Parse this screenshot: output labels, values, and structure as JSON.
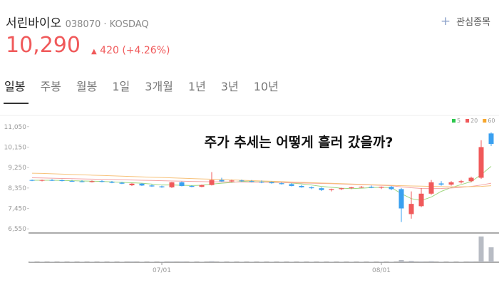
{
  "header": {
    "name": "서린바이오",
    "code": "038070",
    "market": "KOSDAQ",
    "watch": "관심종목",
    "price": "10,290",
    "change": "420",
    "change_pct": "(+4.26%)"
  },
  "tabs": [
    "일봉",
    "주봉",
    "월봉",
    "1일",
    "3개월",
    "1년",
    "3년",
    "10년"
  ],
  "chart_data": {
    "type": "candlestick",
    "annotation": "주가 추세는 어떻게 흘러 갔을까?",
    "categories": [
      null,
      null,
      null,
      null,
      null,
      null,
      null,
      null,
      null,
      null,
      null,
      null,
      null,
      "07/01",
      null,
      null,
      null,
      null,
      null,
      null,
      null,
      null,
      null,
      null,
      null,
      null,
      null,
      null,
      null,
      null,
      null,
      null,
      null,
      null,
      null,
      "08/01",
      null,
      null,
      null,
      null,
      null,
      null,
      null,
      null,
      null,
      null,
      null
    ],
    "open": [
      8700,
      8680,
      8700,
      8690,
      8660,
      8640,
      8610,
      8650,
      8620,
      8580,
      8470,
      8540,
      8460,
      8420,
      8380,
      8600,
      8440,
      8400,
      8480,
      8700,
      8640,
      8680,
      8650,
      8620,
      8600,
      8560,
      8520,
      8440,
      8380,
      8340,
      8260,
      8300,
      8340,
      8380,
      8400,
      8360,
      8400,
      8300,
      7200,
      7550,
      8100,
      8550,
      8500,
      8600,
      8650,
      8800,
      10750
    ],
    "high": [
      8720,
      8720,
      8740,
      8720,
      8700,
      8690,
      8680,
      8690,
      8660,
      8620,
      8560,
      8560,
      8500,
      8450,
      8620,
      8640,
      8470,
      8500,
      9050,
      8800,
      8720,
      8720,
      8700,
      8680,
      8640,
      8600,
      8560,
      8480,
      8420,
      8380,
      8320,
      8360,
      8400,
      8440,
      8460,
      8420,
      8440,
      8350,
      8200,
      8350,
      8700,
      8650,
      8650,
      8700,
      8850,
      10450,
      10800
    ],
    "low": [
      8650,
      8640,
      8660,
      8640,
      8620,
      8600,
      8590,
      8600,
      8560,
      8520,
      8440,
      8440,
      8400,
      8360,
      8350,
      8420,
      8380,
      8380,
      8460,
      8620,
      8600,
      8620,
      8600,
      8560,
      8540,
      8500,
      8420,
      8360,
      8300,
      8220,
      8200,
      8260,
      8300,
      8340,
      8340,
      8300,
      8250,
      6850,
      7000,
      7500,
      8050,
      8450,
      8450,
      8550,
      8600,
      8750,
      10200
    ],
    "close": [
      8680,
      8700,
      8690,
      8660,
      8640,
      8610,
      8650,
      8620,
      8580,
      8540,
      8540,
      8460,
      8420,
      8380,
      8600,
      8440,
      8400,
      8480,
      8700,
      8640,
      8680,
      8650,
      8620,
      8600,
      8560,
      8520,
      8440,
      8380,
      8340,
      8260,
      8300,
      8340,
      8380,
      8400,
      8360,
      8400,
      8300,
      7450,
      7650,
      8100,
      8600,
      8500,
      8600,
      8650,
      8800,
      10150,
      10290
    ],
    "up_color": "#f0595a",
    "down_color": "#3aa0f0",
    "series": [
      {
        "name": "5",
        "color": "#9fd67e",
        "values": [
          8690,
          8690,
          8690,
          8680,
          8670,
          8660,
          8650,
          8640,
          8620,
          8600,
          8580,
          8560,
          8520,
          8480,
          8480,
          8470,
          8460,
          8470,
          8520,
          8560,
          8590,
          8640,
          8660,
          8650,
          8630,
          8600,
          8570,
          8530,
          8480,
          8420,
          8380,
          8340,
          8320,
          8340,
          8370,
          8380,
          8370,
          8100,
          7880,
          7800,
          7950,
          8200,
          8370,
          8500,
          8630,
          8940,
          9300
        ]
      },
      {
        "name": "20",
        "color": "#f4a3a3",
        "values": [
          8800,
          8790,
          8780,
          8770,
          8760,
          8750,
          8740,
          8730,
          8720,
          8710,
          8700,
          8690,
          8680,
          8670,
          8660,
          8650,
          8640,
          8630,
          8625,
          8620,
          8615,
          8610,
          8605,
          8600,
          8595,
          8590,
          8580,
          8570,
          8560,
          8550,
          8540,
          8525,
          8510,
          8495,
          8480,
          8465,
          8450,
          8400,
          8360,
          8330,
          8320,
          8330,
          8350,
          8380,
          8420,
          8480,
          8560
        ]
      },
      {
        "name": "60",
        "color": "#f7c27a",
        "values": [
          9000,
          8990,
          8975,
          8960,
          8945,
          8930,
          8915,
          8900,
          8885,
          8870,
          8855,
          8840,
          8825,
          8810,
          8795,
          8780,
          8765,
          8750,
          8735,
          8720,
          8705,
          8690,
          8675,
          8660,
          8645,
          8630,
          8615,
          8600,
          8585,
          8570,
          8555,
          8540,
          8525,
          8510,
          8495,
          8480,
          8465,
          8450,
          8440,
          8430,
          8420,
          8410,
          8405,
          8405,
          8410,
          8420,
          8450
        ]
      }
    ],
    "legend_colors": [
      "#2cc74d",
      "#f0595a",
      "#f7a62b"
    ],
    "volume": [
      2,
      2,
      2,
      2,
      2,
      2,
      2,
      2,
      2,
      2,
      3,
      2,
      2,
      2,
      3,
      3,
      2,
      2,
      4,
      2,
      2,
      2,
      2,
      2,
      2,
      2,
      2,
      2,
      2,
      2,
      2,
      2,
      2,
      2,
      2,
      2,
      2,
      8,
      5,
      3,
      4,
      2,
      2,
      2,
      3,
      95,
      55
    ],
    "volume_color": "#b8bcc4",
    "volume_ylim": [
      0,
      100
    ],
    "ylim": [
      6400,
      11450
    ],
    "yticks": [
      {
        "value": 6550,
        "label": "6,550"
      },
      {
        "value": 7450,
        "label": "7,450"
      },
      {
        "value": 8350,
        "label": "8,350"
      },
      {
        "value": 9250,
        "label": "9,250"
      },
      {
        "value": 10150,
        "label": "10,150"
      },
      {
        "value": 11050,
        "label": "11,050"
      }
    ],
    "legend": "top-right"
  }
}
